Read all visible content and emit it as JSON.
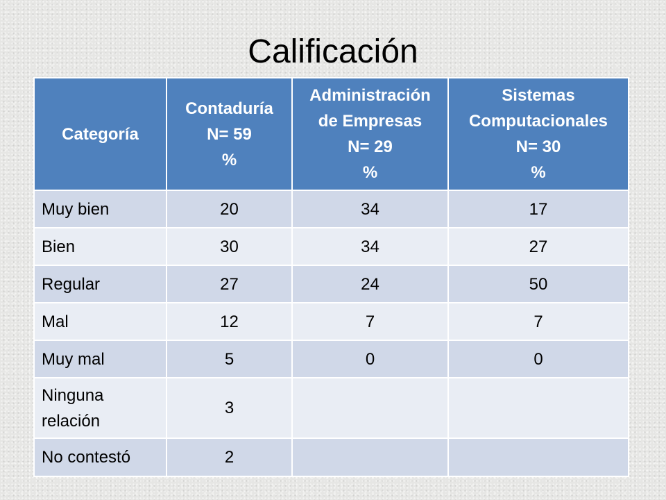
{
  "slide": {
    "title": "Calificación"
  },
  "table": {
    "headers": [
      {
        "lines": [
          "Categoría"
        ]
      },
      {
        "lines": [
          "Contaduría",
          "N= 59",
          "%"
        ]
      },
      {
        "lines": [
          "Administración",
          "de Empresas",
          "N= 29",
          "%"
        ]
      },
      {
        "lines": [
          "Sistemas",
          "Computacionales",
          "N= 30",
          "%"
        ]
      }
    ],
    "rows": [
      {
        "category": "Muy bien",
        "values": [
          "20",
          "34",
          "17"
        ]
      },
      {
        "category": "Bien",
        "values": [
          "30",
          "34",
          "27"
        ]
      },
      {
        "category": "Regular",
        "values": [
          "27",
          "24",
          "50"
        ]
      },
      {
        "category": "Mal",
        "values": [
          "12",
          "7",
          "7"
        ]
      },
      {
        "category": "Muy mal",
        "values": [
          "5",
          "0",
          "0"
        ]
      },
      {
        "category": "Ninguna relación",
        "values": [
          "3",
          "",
          ""
        ]
      },
      {
        "category": "No contestó",
        "values": [
          "2",
          "",
          ""
        ]
      }
    ]
  }
}
